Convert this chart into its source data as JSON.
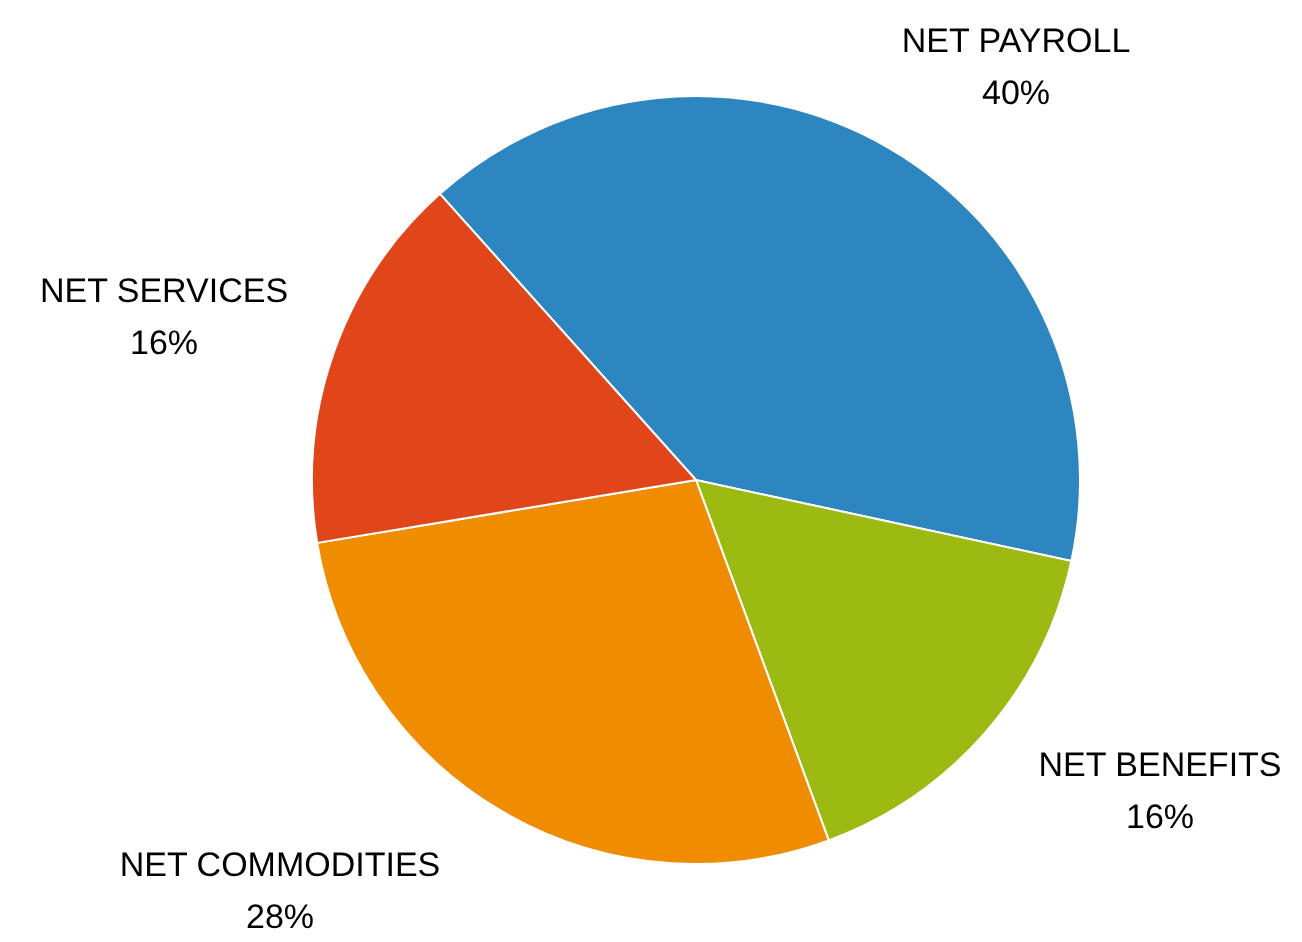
{
  "chart_data": {
    "type": "pie",
    "categories": [
      "NET PAYROLL",
      "NET BENEFITS",
      "NET COMMODITIES",
      "NET SERVICES"
    ],
    "values": [
      40,
      16,
      28,
      16
    ],
    "value_labels": [
      "40%",
      "16%",
      "28%",
      "16%"
    ],
    "colors": [
      "#2e86c1",
      "#9dba12",
      "#f08c00",
      "#e0461a"
    ],
    "legend": false
  }
}
